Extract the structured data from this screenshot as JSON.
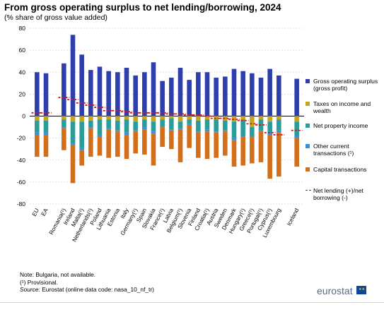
{
  "title": "From gross operating surplus to net lending/borrowing, 2024",
  "subtitle": "(% share of gross value added)",
  "notes": {
    "line1": "Note: Bulgaria, not available.",
    "line2": "(¹) Provisional.",
    "source_label": "Source:",
    "source_text": " Eurostat (online data code: nasa_10_nf_tr)"
  },
  "logo_text": "eurostat",
  "legend": [
    {
      "key": "gos",
      "label": "Gross operating surplus (gross profit)",
      "color": "#2e3fad"
    },
    {
      "key": "tax",
      "label": "Taxes on income and wealth",
      "color": "#c8a418"
    },
    {
      "key": "prop",
      "label": "Net property income",
      "color": "#2a9d9a"
    },
    {
      "key": "oct",
      "label": "Other current transactions (¹)",
      "color": "#3b8fd9"
    },
    {
      "key": "cap",
      "label": "Capital transactions",
      "color": "#d36e1a"
    },
    {
      "key": "nl",
      "label": "Net lending (+)/net borrowing (-)",
      "color": "#d7191c"
    }
  ],
  "chart_data": {
    "type": "bar",
    "stacked": true,
    "ylim": [
      -80,
      80
    ],
    "yticks": [
      80,
      60,
      40,
      20,
      0,
      -20,
      -40,
      -60,
      -80
    ],
    "grid": true,
    "legend_position": "right",
    "categories": [
      "EU",
      "EA",
      "Romania(¹)",
      "Ireland",
      "Malta(¹)",
      "Netherlands(¹)",
      "Poland",
      "Lithuania",
      "Estonia",
      "Italy",
      "Germany(¹)",
      "Spain",
      "Slovakia",
      "France(¹)",
      "Latvia",
      "Belgium(¹)",
      "Slovenia",
      "Finland",
      "Croatia(¹)",
      "Austria",
      "Sweden",
      "Denmark",
      "Hungary(¹)",
      "Greece(¹)",
      "Portugal(¹)",
      "Cyprus(¹)",
      "Luxembourg",
      "Iceland"
    ],
    "gap_before": [
      2,
      27
    ],
    "series": [
      {
        "name": "Gross operating surplus (gross profit)",
        "key": "gos",
        "values": [
          40,
          39,
          48,
          74,
          56,
          42,
          45,
          41,
          40,
          44,
          37,
          40,
          49,
          32,
          35,
          44,
          33,
          40,
          40,
          35,
          36,
          43,
          41,
          39,
          35,
          43,
          37,
          34
        ]
      },
      {
        "name": "Taxes on income and wealth",
        "key": "tax",
        "values": [
          -4,
          -4,
          -3,
          -5,
          -5,
          -4,
          -3,
          -3,
          -4,
          -3,
          -5,
          -3,
          -5,
          -3,
          -2,
          -5,
          -3,
          -4,
          -3,
          -3,
          -4,
          -5,
          -3,
          -10,
          -3,
          -5,
          -3,
          -5
        ]
      },
      {
        "name": "Net property income",
        "key": "prop",
        "values": [
          -11,
          -11,
          -7,
          -20,
          -24,
          -6,
          -14,
          -8,
          -9,
          -12,
          -8,
          -7,
          -9,
          -6,
          -10,
          -6,
          -4,
          -10,
          -9,
          -11,
          -9,
          -15,
          -15,
          -8,
          -10,
          -10,
          -10,
          -13
        ]
      },
      {
        "name": "Other current transactions (¹)",
        "key": "oct",
        "values": [
          -2,
          -2,
          -1,
          -1,
          -2,
          -1,
          -2,
          -1,
          -1,
          -2,
          -1,
          -2,
          -2,
          -1,
          -1,
          -1,
          -1,
          -1,
          -2,
          -1,
          -1,
          -2,
          -1,
          -1,
          -1,
          -2,
          -2,
          -2
        ]
      },
      {
        "name": "Capital transactions",
        "key": "cap",
        "values": [
          -20,
          -20,
          -20,
          -35,
          -14,
          -26,
          -17,
          -26,
          -23,
          -22,
          -20,
          -23,
          -29,
          -18,
          -17,
          -30,
          -21,
          -23,
          -25,
          -23,
          -22,
          -24,
          -26,
          -24,
          -28,
          -40,
          -40,
          -26
        ]
      },
      {
        "name": "Net lending (+)/net borrowing (-)",
        "key": "nl",
        "type": "marker",
        "values": [
          3,
          3,
          17,
          15,
          12,
          10,
          8,
          5,
          5,
          4,
          3,
          3,
          3,
          3,
          2,
          2,
          1,
          1,
          0,
          -2,
          -2,
          -3,
          -4,
          -7,
          -8,
          -15,
          -17,
          -13
        ]
      }
    ]
  }
}
